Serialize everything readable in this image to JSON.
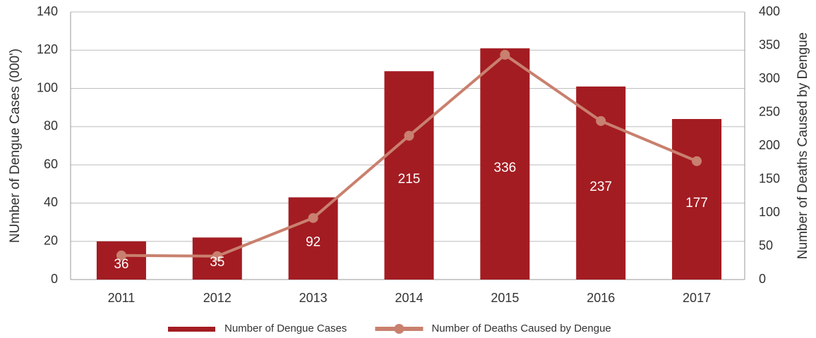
{
  "chart_data": {
    "type": "bar",
    "categories": [
      "2011",
      "2012",
      "2013",
      "2014",
      "2015",
      "2016",
      "2017"
    ],
    "series": [
      {
        "name": "Number of Dengue Cases",
        "type": "bar",
        "color": "#a31c22",
        "values": [
          20,
          22,
          43,
          109,
          121,
          101,
          84
        ]
      },
      {
        "name": "Number of Deaths Caused by Dengue",
        "type": "line",
        "axis": "y2",
        "color": "#c9806e",
        "values": [
          36,
          35,
          92,
          215,
          336,
          237,
          177
        ]
      }
    ],
    "ylabel": "NUmber of Dengue Cases (000')",
    "y2label": "Number of Deaths Caused by Dengue",
    "ylim": [
      0,
      140
    ],
    "yticks": [
      0,
      20,
      40,
      60,
      80,
      100,
      120,
      140
    ],
    "y2lim": [
      0,
      400
    ],
    "y2ticks": [
      0,
      50,
      100,
      150,
      200,
      250,
      300,
      350,
      400
    ],
    "grid": true,
    "legend": "bottom"
  }
}
